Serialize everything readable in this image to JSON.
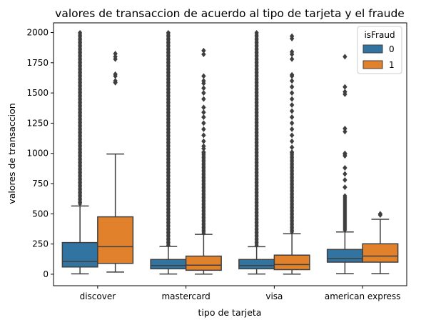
{
  "chart_data": {
    "type": "box",
    "title": "valores de transaccion de acuerdo al tipo de tarjeta  y el fraude",
    "xlabel": "tipo de tarjeta",
    "ylabel": "valores de transaccion",
    "categories": [
      "discover",
      "mastercard",
      "visa",
      "american express"
    ],
    "yticks": [
      0,
      250,
      500,
      750,
      1000,
      1250,
      1500,
      1750,
      2000
    ],
    "ylim": [
      -95,
      2080
    ],
    "legend": {
      "title": "isFraud",
      "position": "top-right"
    },
    "series": [
      {
        "name": "0",
        "color": "#3274a1",
        "boxes": [
          {
            "whisker_low": 3,
            "q1": 60,
            "median": 105,
            "q3": 262,
            "whisker_high": 565,
            "outliers_dense": [
              570,
              2000
            ],
            "outliers": []
          },
          {
            "whisker_low": 2,
            "q1": 45,
            "median": 72,
            "q3": 122,
            "whisker_high": 230,
            "outliers_dense": [
              235,
              2000
            ],
            "outliers": []
          },
          {
            "whisker_low": 2,
            "q1": 45,
            "median": 72,
            "q3": 122,
            "whisker_high": 228,
            "outliers_dense": [
              232,
              2000
            ],
            "outliers": []
          },
          {
            "whisker_low": 5,
            "q1": 100,
            "median": 130,
            "q3": 205,
            "whisker_high": 350,
            "outliers_dense": [
              355,
              650
            ],
            "outliers": [
              720,
              780,
              830,
              880,
              980,
              995,
              1000,
              1180,
              1205,
              1490,
              1510,
              1550,
              1800
            ]
          }
        ]
      },
      {
        "name": "1",
        "color": "#e1812c",
        "boxes": [
          {
            "whisker_low": 18,
            "q1": 90,
            "median": 228,
            "q3": 475,
            "whisker_high": 995,
            "outliers_dense": [],
            "outliers": [
              1585,
              1600,
              1640,
              1655,
              1780,
              1800,
              1825
            ]
          },
          {
            "whisker_low": 1,
            "q1": 33,
            "median": 75,
            "q3": 150,
            "whisker_high": 330,
            "outliers_dense": [
              335,
              1000
            ],
            "outliers": [
              1010,
              1040,
              1060,
              1100,
              1150,
              1200,
              1250,
              1300,
              1340,
              1380,
              1450,
              1500,
              1540,
              1580,
              1600,
              1640,
              1820,
              1850
            ]
          },
          {
            "whisker_low": 1,
            "q1": 38,
            "median": 80,
            "q3": 158,
            "whisker_high": 335,
            "outliers_dense": [
              340,
              1000
            ],
            "outliers": [
              1010,
              1050,
              1100,
              1150,
              1200,
              1250,
              1300,
              1350,
              1400,
              1450,
              1500,
              1550,
              1600,
              1640,
              1650,
              1780,
              1820,
              1840,
              1950,
              1970
            ]
          },
          {
            "whisker_low": 5,
            "q1": 100,
            "median": 150,
            "q3": 252,
            "whisker_high": 455,
            "outliers_dense": [],
            "outliers": [
              490,
              500
            ]
          }
        ]
      }
    ]
  }
}
